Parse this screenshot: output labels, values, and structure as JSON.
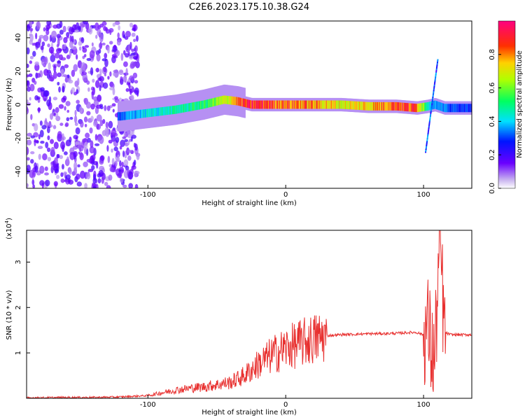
{
  "title": "C2E6.2023.175.10.38.G24",
  "chart_data": [
    {
      "type": "heatmap",
      "xlabel": "Height of straight line (km)",
      "ylabel": "Frequency (Hz)",
      "xlim": [
        -188,
        135
      ],
      "ylim": [
        -50,
        50
      ],
      "xticks": [
        -100,
        0,
        100
      ],
      "yticks": [
        -40,
        -20,
        0,
        20,
        40
      ],
      "colorbar": {
        "label": "Normalized spectral amplitude",
        "range": [
          0,
          1
        ],
        "ticks": [
          "0.0",
          "0.2",
          "0.4",
          "0.6",
          "0.8"
        ],
        "colormap": "rainbow"
      },
      "ridge": {
        "description_points_x": [
          -120,
          -100,
          -80,
          -60,
          -45,
          -35,
          -25,
          -15,
          0,
          20,
          40,
          60,
          80,
          95,
          103,
          108,
          115,
          135
        ],
        "frequency_hz": [
          -7,
          -5,
          -3,
          0,
          3,
          2,
          0,
          0,
          0,
          0,
          0,
          -1,
          -1,
          -2,
          -1,
          0,
          -2,
          -2
        ],
        "peak_amplitude": [
          0.35,
          0.45,
          0.5,
          0.55,
          0.7,
          0.9,
          0.95,
          0.95,
          0.9,
          0.85,
          0.75,
          0.8,
          0.95,
          0.9,
          0.5,
          0.4,
          0.35,
          0.3
        ]
      },
      "noise_region_x": [
        -188,
        -115
      ]
    },
    {
      "type": "line",
      "xlabel": "Height of straight line (km)",
      "ylabel": "SNR (10 * v/v)",
      "multiplier_label": "(x10",
      "multiplier_exp": "4",
      "multiplier_close": ")",
      "xlim": [
        -188,
        135
      ],
      "ylim": [
        0,
        3.7
      ],
      "xticks": [
        -100,
        0,
        100
      ],
      "yticks": [
        1,
        2,
        3
      ],
      "color": "#e8302f",
      "x": [
        -188,
        -160,
        -140,
        -120,
        -100,
        -90,
        -80,
        -70,
        -60,
        -50,
        -40,
        -30,
        -20,
        -10,
        0,
        10,
        20,
        30,
        40,
        60,
        80,
        90,
        95,
        100,
        103,
        105,
        108,
        110,
        112,
        115,
        120,
        135
      ],
      "y": [
        0.01,
        0.02,
        0.02,
        0.03,
        0.06,
        0.12,
        0.18,
        0.22,
        0.25,
        0.3,
        0.35,
        0.5,
        0.75,
        0.95,
        1.1,
        1.2,
        1.3,
        1.38,
        1.4,
        1.42,
        1.43,
        1.45,
        1.45,
        1.4,
        1.6,
        1.2,
        0.8,
        2.2,
        3.5,
        1.45,
        1.4,
        1.4
      ]
    }
  ]
}
